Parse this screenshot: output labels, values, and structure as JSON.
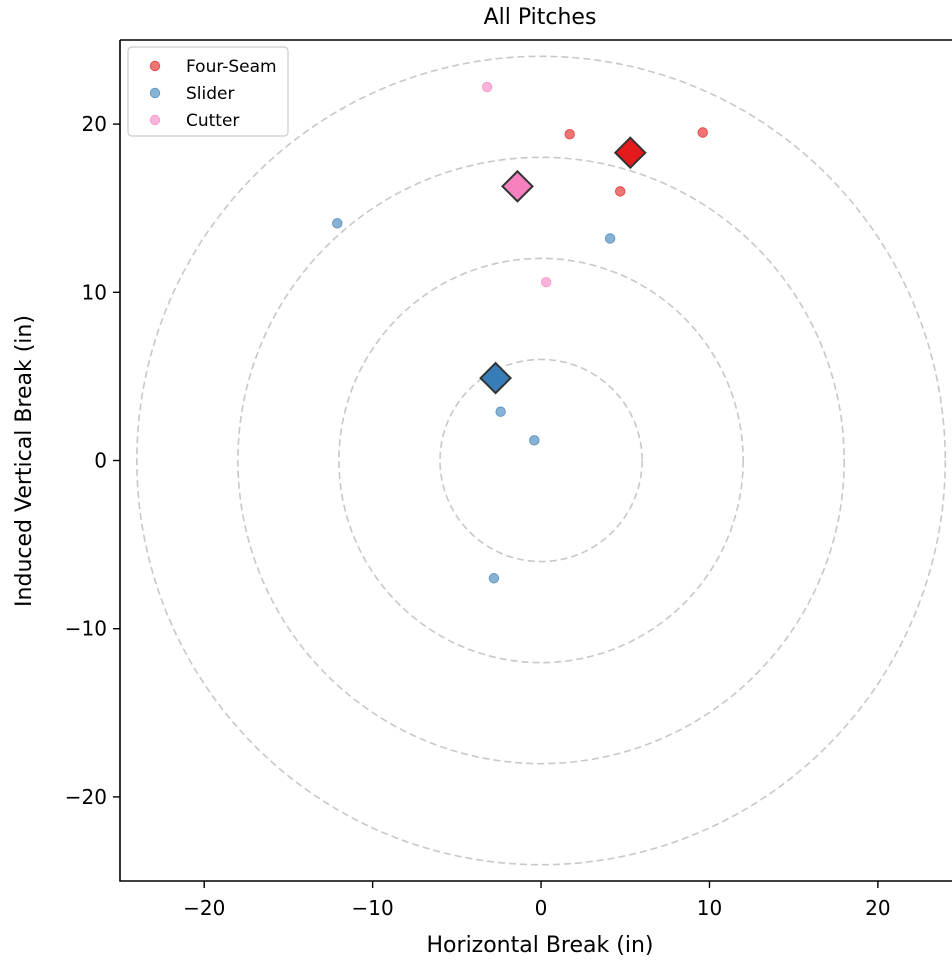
{
  "chart_data": {
    "type": "scatter",
    "title": "All Pitches",
    "xlabel": "Horizontal Break (in)",
    "ylabel": "Induced Vertical Break (in)",
    "xlim": [
      -25,
      24.4
    ],
    "ylim": [
      -25,
      25
    ],
    "xticks": [
      -20,
      -10,
      0,
      10,
      20
    ],
    "yticks": [
      -20,
      -10,
      0,
      10,
      20
    ],
    "xtick_labels": [
      "−20",
      "−10",
      "0",
      "10",
      "20"
    ],
    "ytick_labels": [
      "−20",
      "−10",
      "0",
      "10",
      "20"
    ],
    "grid": false,
    "reference_circles": {
      "center": [
        0,
        0
      ],
      "radii": [
        6,
        12,
        18,
        24
      ],
      "color": "#c8c8c8",
      "style": "dashed"
    },
    "legend": {
      "placement": "top-left",
      "entries": [
        "Four-Seam",
        "Slider",
        "Cutter"
      ]
    },
    "series": [
      {
        "name": "Four-Seam",
        "color": "#e41a1c",
        "points": [
          [
            1.7,
            19.4
          ],
          [
            9.6,
            19.5
          ],
          [
            4.7,
            16.0
          ]
        ],
        "mean": [
          5.3,
          18.3
        ]
      },
      {
        "name": "Slider",
        "color": "#377eb8",
        "points": [
          [
            -12.1,
            14.1
          ],
          [
            4.1,
            13.2
          ],
          [
            -2.4,
            2.9
          ],
          [
            -0.4,
            1.2
          ],
          [
            -2.8,
            -7.0
          ]
        ],
        "mean": [
          -2.7,
          4.9
        ]
      },
      {
        "name": "Cutter",
        "color": "#f781bf",
        "points": [
          [
            -3.2,
            22.2
          ],
          [
            0.3,
            10.6
          ]
        ],
        "mean": [
          -1.4,
          16.3
        ]
      }
    ]
  }
}
